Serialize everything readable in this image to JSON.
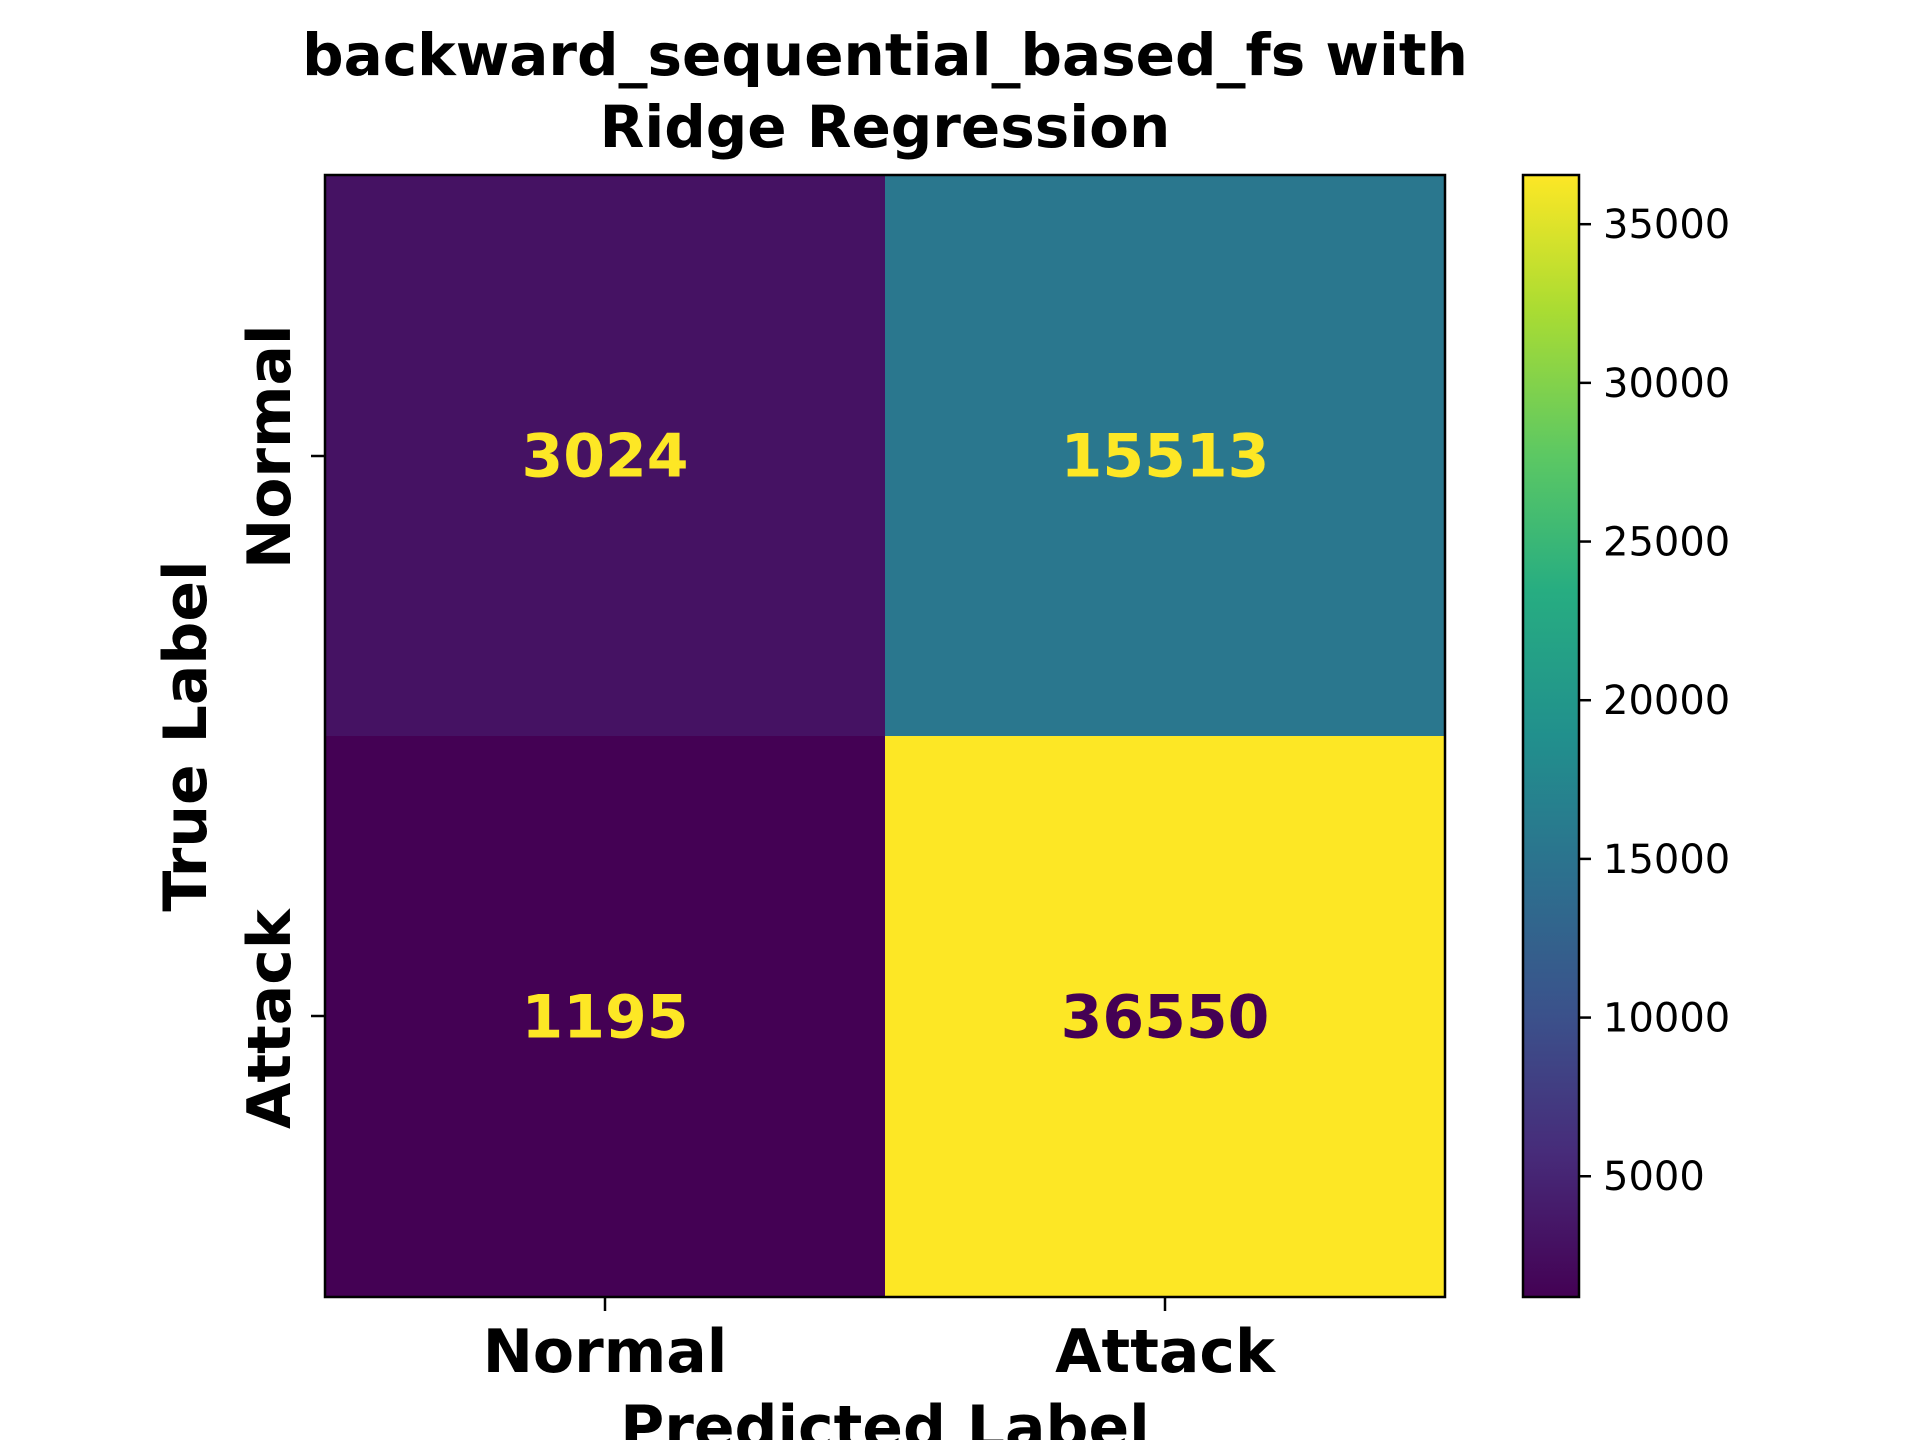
{
  "chart_data": {
    "type": "heatmap",
    "title_lines": [
      "backward_sequential_based_fs with",
      "Ridge Regression"
    ],
    "xlabel": "Predicted Label",
    "ylabel": "True Label",
    "x_categories": [
      "Normal",
      "Attack"
    ],
    "y_categories": [
      "Normal",
      "Attack"
    ],
    "matrix": [
      [
        3024,
        15513
      ],
      [
        1195,
        36550
      ]
    ],
    "colormap": "viridis",
    "colorbar": {
      "range": [
        1195,
        36550
      ],
      "ticks": [
        5000,
        10000,
        15000,
        20000,
        25000,
        30000,
        35000
      ]
    },
    "label_colors": {
      "on_dark": "#fde725",
      "on_light": "#440154"
    }
  }
}
